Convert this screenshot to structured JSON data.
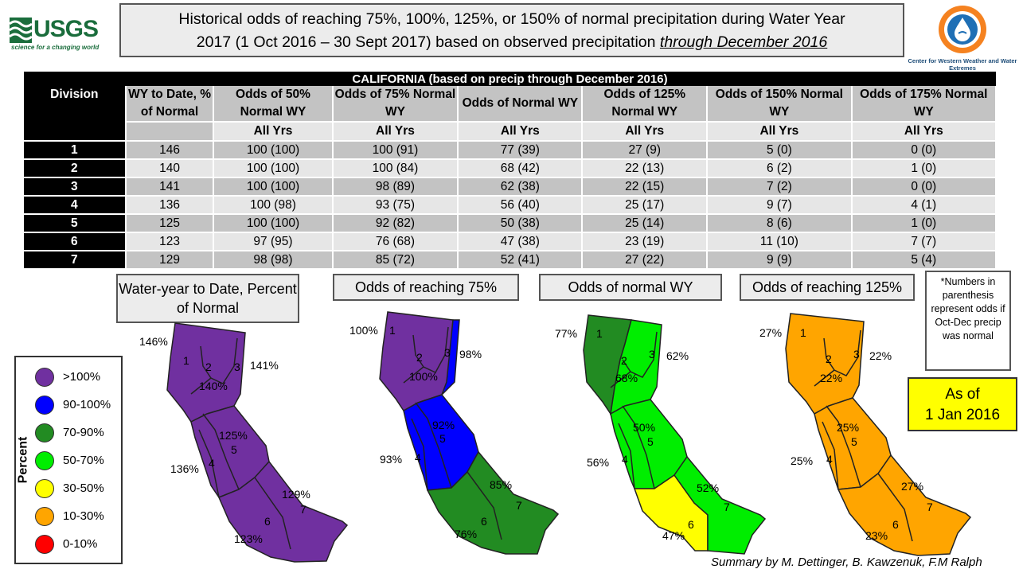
{
  "header": {
    "usgs_name": "USGS",
    "usgs_tagline": "science for a changing world",
    "title_line1": "Historical odds of reaching 75%, 100%, 125%, or 150% of normal precipitation during Water Year",
    "title_line2_prefix": "2017 (1 Oct 2016 – 30 Sept 2017) based on observed precipitation ",
    "title_line2_emph": "through December 2016",
    "cw3e_name": "Center for Western Weather and Water Extremes"
  },
  "table": {
    "caption": "CALIFORNIA (based on precip through December 2016)",
    "headers": [
      "Division",
      "WY to Date, % of Normal",
      "Odds of 50% Normal WY",
      "Odds of 75% Normal WY",
      "Odds of Normal WY",
      "Odds of 125% Normal WY",
      "Odds of 150% Normal WY",
      "Odds of 175% Normal WY"
    ],
    "sub_label": "All Yrs",
    "rows": [
      {
        "division": "1",
        "wytd": "146",
        "o50": "100 (100)",
        "o75": "100 (91)",
        "onorm": "77 (39)",
        "o125": "27 (9)",
        "o150": "5 (0)",
        "o175": "0 (0)"
      },
      {
        "division": "2",
        "wytd": "140",
        "o50": "100 (100)",
        "o75": "100 (84)",
        "onorm": "68 (42)",
        "o125": "22 (13)",
        "o150": "6 (2)",
        "o175": "1 (0)"
      },
      {
        "division": "3",
        "wytd": "141",
        "o50": "100 (100)",
        "o75": "98 (89)",
        "onorm": "62 (38)",
        "o125": "22 (15)",
        "o150": "7 (2)",
        "o175": "0 (0)"
      },
      {
        "division": "4",
        "wytd": "136",
        "o50": "100 (98)",
        "o75": "93 (75)",
        "onorm": "56 (40)",
        "o125": "25 (17)",
        "o150": "9 (7)",
        "o175": "4 (1)"
      },
      {
        "division": "5",
        "wytd": "125",
        "o50": "100 (100)",
        "o75": "92 (82)",
        "onorm": "50 (38)",
        "o125": "25 (14)",
        "o150": "8 (6)",
        "o175": "1 (0)"
      },
      {
        "division": "6",
        "wytd": "123",
        "o50": "97 (95)",
        "o75": "76 (68)",
        "onorm": "47 (38)",
        "o125": "23 (19)",
        "o150": "11 (10)",
        "o175": "7 (7)"
      },
      {
        "division": "7",
        "wytd": "129",
        "o50": "98 (98)",
        "o75": "85 (72)",
        "onorm": "52 (41)",
        "o125": "27 (22)",
        "o150": "9 (9)",
        "o175": "5 (4)"
      }
    ]
  },
  "maps": {
    "wytd_title": "Water-year to Date, Percent of Normal",
    "wytd_labels": [
      "146%",
      "140%",
      "141%",
      "136%",
      "125%",
      "123%",
      "129%"
    ],
    "odds75_title": "Odds of reaching 75%",
    "odds75_labels": [
      "100%",
      "100%",
      "98%",
      "93%",
      "92%",
      "76%",
      "85%"
    ],
    "normal_title": "Odds of normal WY",
    "normal_labels": [
      "77%",
      "68%",
      "62%",
      "56%",
      "50%",
      "47%",
      "52%"
    ],
    "odds125_title": "Odds of reaching 125%",
    "odds125_labels": [
      "27%",
      "22%",
      "22%",
      "25%",
      "25%",
      "23%",
      "27%"
    ],
    "division_numbers": [
      "1",
      "2",
      "3",
      "4",
      "5",
      "6",
      "7"
    ]
  },
  "colors": {
    "gt100": "#7030a0",
    "p90_100": "#0000ff",
    "p70_90": "#228b22",
    "p50_70": "#00ee00",
    "p30_50": "#ffff00",
    "p10_30": "#ffa500",
    "p0_10": "#ff0000"
  },
  "legend": {
    "title": "Percent",
    "items": [
      {
        "label": ">100%",
        "color": "#7030a0"
      },
      {
        "label": "90-100%",
        "color": "#0000ff"
      },
      {
        "label": "70-90%",
        "color": "#228b22"
      },
      {
        "label": "50-70%",
        "color": "#00ee00"
      },
      {
        "label": "30-50%",
        "color": "#ffff00"
      },
      {
        "label": "10-30%",
        "color": "#ffa500"
      },
      {
        "label": "0-10%",
        "color": "#ff0000"
      }
    ]
  },
  "note": "*Numbers in parenthesis represent odds if Oct-Dec precip was normal",
  "as_of": {
    "line1": "As of",
    "line2": "1 Jan 2016"
  },
  "credit": "Summary by M. Dettinger, B. Kawzenuk, F.M Ralph"
}
